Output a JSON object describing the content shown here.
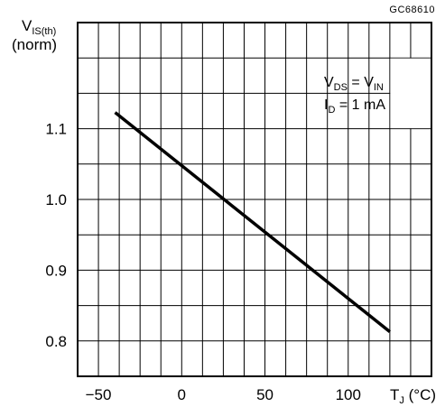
{
  "figure_id": "GC68610",
  "chart_data": {
    "type": "line",
    "title": "",
    "xlabel": {
      "main": "T",
      "sub": "J",
      "unit": " (°C)"
    },
    "ylabel": {
      "main": "V",
      "sub": "IS(th)",
      "line2": "(norm)"
    },
    "x_ticks": [
      -50,
      0,
      50,
      100
    ],
    "x_tick_labels": [
      "−50",
      "0",
      "50",
      "100"
    ],
    "y_ticks": [
      0.8,
      0.9,
      1.0,
      1.1
    ],
    "y_tick_labels": [
      "0.8",
      "0.9",
      "1.0",
      "1.1"
    ],
    "xlim": [
      -62.5,
      150
    ],
    "ylim": [
      0.75,
      1.25
    ],
    "grid": true,
    "grid_step": {
      "x": 12.5,
      "y": 0.05
    },
    "series": [
      {
        "color": "#000000",
        "x": [
          -40,
          125
        ],
        "y": [
          1.123,
          0.813
        ]
      }
    ],
    "legend": {
      "placement": "top-right",
      "line1": {
        "main": "V",
        "sub": "DS",
        "mid": " = V",
        "sub2": "IN"
      },
      "line2": {
        "main": "I",
        "sub": "D",
        "mid": " = 1 mA"
      }
    }
  }
}
